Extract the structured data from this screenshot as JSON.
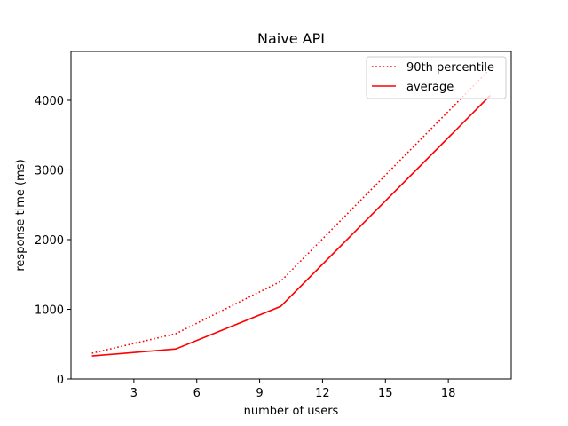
{
  "chart_data": {
    "type": "line",
    "title": "Naive API",
    "xlabel": "number of users",
    "ylabel": "response time (ms)",
    "xlim": [
      0,
      21
    ],
    "ylim": [
      0,
      4700
    ],
    "xticks": [
      3,
      6,
      9,
      12,
      15,
      18
    ],
    "yticks": [
      0,
      1000,
      2000,
      3000,
      4000
    ],
    "grid": false,
    "legend_position": "top-right",
    "series": [
      {
        "name": "90th percentile",
        "style": "dotted",
        "color": "#ff0000",
        "x": [
          1,
          5,
          10,
          20
        ],
        "y": [
          370,
          650,
          1400,
          4450
        ]
      },
      {
        "name": "average",
        "style": "solid",
        "color": "#ff0000",
        "x": [
          1,
          5,
          10,
          20
        ],
        "y": [
          330,
          430,
          1040,
          4070
        ]
      }
    ]
  }
}
